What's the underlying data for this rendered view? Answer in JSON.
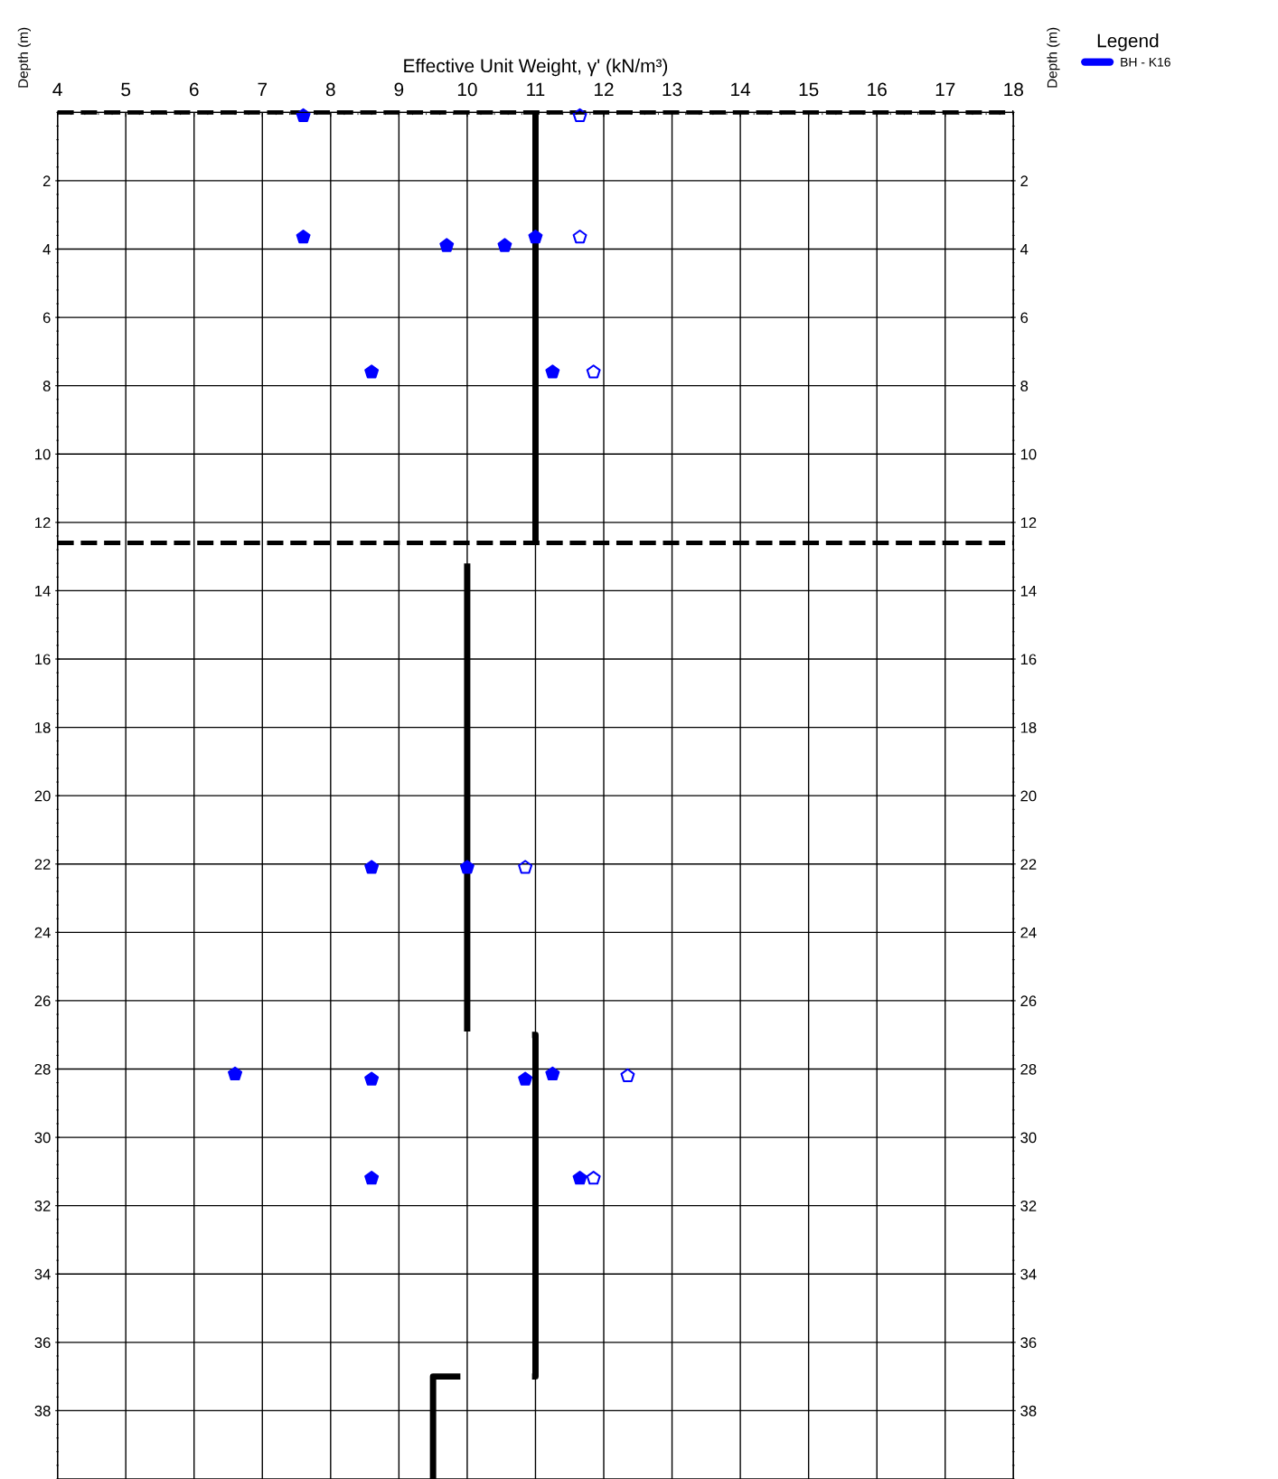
{
  "chart_data": {
    "type": "scatter",
    "xlabel": "Effective Unit Weight, γ' (kN/m³)",
    "ylabel": "Depth (m)",
    "y2label": "Depth (m)",
    "legend_title": "Legend",
    "legend": "right",
    "grid": true,
    "xlim": [
      4,
      18
    ],
    "xticks": [
      4,
      5,
      6,
      7,
      8,
      9,
      10,
      11,
      12,
      13,
      14,
      15,
      16,
      17,
      18
    ],
    "ylim": [
      40,
      0
    ],
    "yticks": [
      2,
      4,
      6,
      8,
      10,
      12,
      14,
      16,
      18,
      20,
      22,
      24,
      26,
      28,
      30,
      32,
      34,
      36,
      38
    ],
    "y2lim": [
      40,
      0
    ],
    "y2ticks": [
      2,
      4,
      6,
      8,
      10,
      12,
      14,
      16,
      18,
      20,
      22,
      24,
      26,
      28,
      30,
      32,
      34,
      36,
      38
    ],
    "ref_lines": [
      {
        "axis": "y",
        "value": 0,
        "color": "#000000",
        "line_style": "dashed"
      },
      {
        "axis": "y",
        "value": 12.6,
        "color": "#000000",
        "line_style": "dashed"
      }
    ],
    "series": [
      {
        "name": "BH - K16",
        "color": "#0000ff",
        "x": [
          7.6,
          7.6,
          11.0,
          9.7,
          10.55,
          8.6,
          11.25,
          8.6,
          10.0,
          6.6,
          11.25,
          8.6,
          10.85,
          8.6,
          11.65
        ],
        "values": [
          0.1,
          3.65,
          3.65,
          3.9,
          3.9,
          7.6,
          7.6,
          22.1,
          22.1,
          28.15,
          28.15,
          28.3,
          28.3,
          31.2,
          31.2
        ]
      },
      {
        "color": "#0000ff",
        "x": [
          11.65,
          11.65,
          11.85,
          10.85,
          12.35,
          11.85
        ],
        "values": [
          0.1,
          3.65,
          7.6,
          22.1,
          28.2,
          31.2
        ]
      },
      {
        "type": "line",
        "color": "#000000",
        "line_style": "solid",
        "x": [
          11,
          11,
          null,
          10,
          10,
          null,
          10.95,
          11,
          11,
          10.95,
          null,
          9.9,
          9.5,
          9.5
        ],
        "values": [
          0,
          12.6,
          null,
          13.2,
          26.9,
          null,
          27,
          27,
          37,
          37,
          null,
          37,
          37,
          40
        ]
      }
    ]
  }
}
